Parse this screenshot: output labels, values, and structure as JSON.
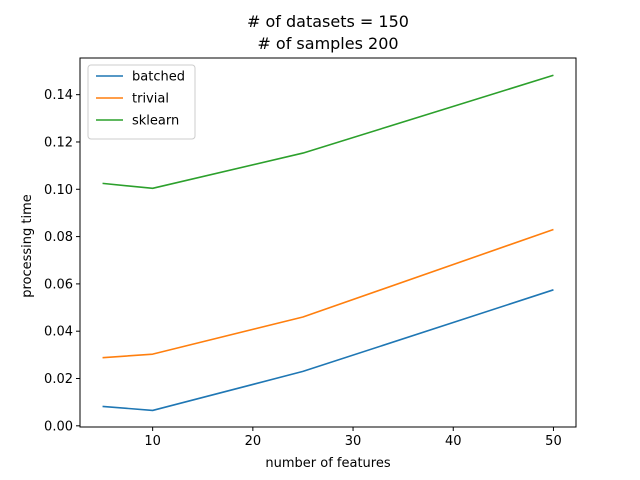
{
  "chart_data": {
    "type": "line",
    "title_lines": [
      "# of datasets = 150",
      "# of samples 200"
    ],
    "xlabel": "number of features",
    "ylabel": "processing time",
    "x": [
      5,
      10,
      25,
      50
    ],
    "xlim": [
      2.75,
      52.25
    ],
    "ylim": [
      -0.0005,
      0.1555
    ],
    "xticks": [
      10,
      20,
      30,
      40,
      50
    ],
    "xtick_labels": [
      "10",
      "20",
      "30",
      "40",
      "50"
    ],
    "yticks": [
      0.0,
      0.02,
      0.04,
      0.06,
      0.08,
      0.1,
      0.12,
      0.14
    ],
    "ytick_labels": [
      "0.00",
      "0.02",
      "0.04",
      "0.06",
      "0.08",
      "0.10",
      "0.12",
      "0.14"
    ],
    "series": [
      {
        "name": "batched",
        "color": "#1f77b4",
        "values": [
          0.0082,
          0.0065,
          0.023,
          0.0575
        ]
      },
      {
        "name": "trivial",
        "color": "#ff7f0e",
        "values": [
          0.0288,
          0.0303,
          0.046,
          0.083
        ]
      },
      {
        "name": "sklearn",
        "color": "#2ca02c",
        "values": [
          0.1025,
          0.1004,
          0.1153,
          0.1482
        ]
      }
    ],
    "legend_position": "upper-left",
    "grid": false
  }
}
